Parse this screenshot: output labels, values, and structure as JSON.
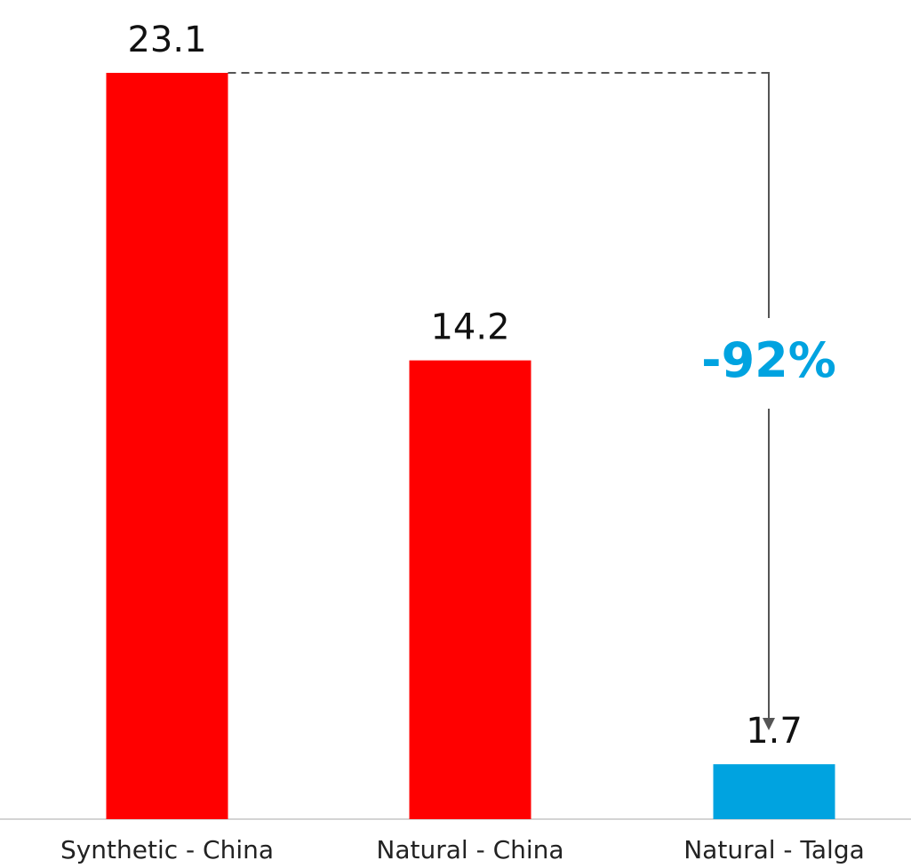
{
  "chart_data": {
    "type": "bar",
    "categories": [
      "Synthetic - China",
      "Natural - China",
      "Natural - Talga"
    ],
    "values": [
      23.1,
      14.2,
      1.7
    ],
    "data_labels": [
      "23.1",
      "14.2",
      "1.7"
    ],
    "bar_colors": [
      "#ff0000",
      "#ff0000",
      "#00a3e0"
    ],
    "ylim": [
      0,
      23.1
    ],
    "grid": false,
    "annotation": {
      "text": "-92%",
      "from_category": 0,
      "to_category": 2,
      "color": "#00a3e0"
    },
    "title": "",
    "xlabel": "",
    "ylabel": ""
  }
}
